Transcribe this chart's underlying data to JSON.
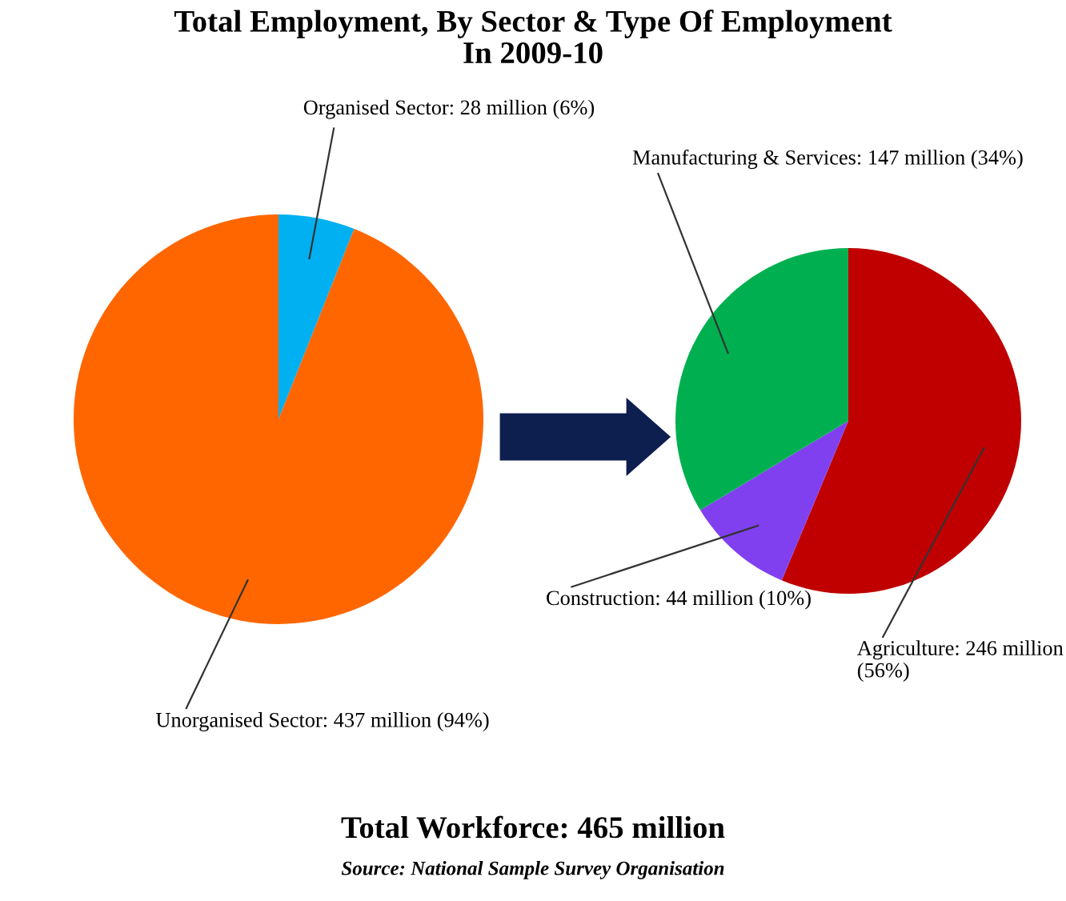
{
  "chart_data": [
    {
      "type": "pie",
      "title": "Total Employment, By Sector & Type Of Employment\nIn 2009-10",
      "categories": [
        "Organised Sector",
        "Unorganised Sector"
      ],
      "values": [
        28000000,
        437000000
      ],
      "colors": [
        "#00b0f0",
        "#ff6600"
      ],
      "value_labels": [
        "28 million (6%)",
        "437 million (94%)"
      ],
      "annotations": [
        "Total Workforce: 465 million",
        "Source: National Sample Survey Organisation"
      ]
    },
    {
      "type": "pie",
      "categories": [
        "Agriculture",
        "Construction",
        "Manufacturing & Services"
      ],
      "values": [
        246000000,
        44000000,
        147000000
      ],
      "colors": [
        "#c00000",
        "#8040f0",
        "#00b050"
      ],
      "value_labels": [
        "246 million\n(56%)",
        "44 million (10%)",
        "147 million (34%)"
      ]
    }
  ]
}
